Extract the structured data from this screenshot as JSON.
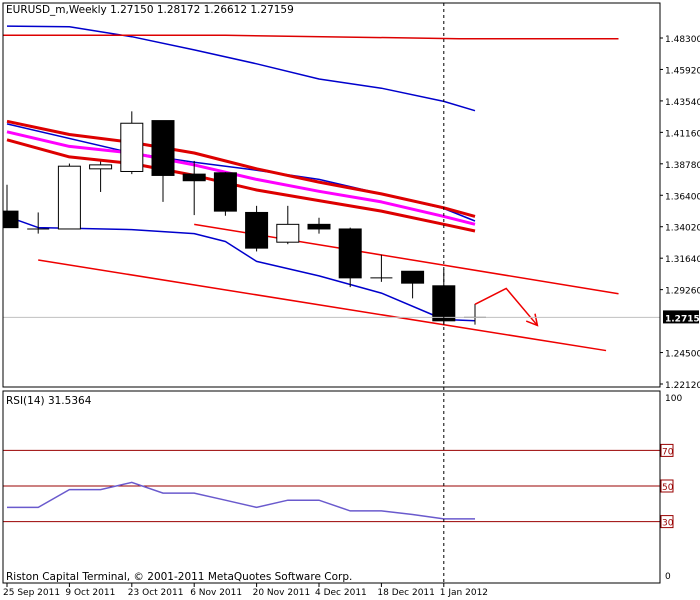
{
  "chart_data": [
    {
      "type": "candlestick",
      "title": "EURUSD_m,Weekly  1.27150 1.28172 1.26612 1.27159",
      "copyright": "Riston Capital Terminal, © 2001-2011 MetaQuotes Software Corp.",
      "ylim": [
        1.2212,
        1.4951
      ],
      "y_ticks": [
        "1.48300",
        "1.45920",
        "1.43540",
        "1.41160",
        "1.38780",
        "1.36400",
        "1.34020",
        "1.31640",
        "1.29260",
        "1.27159",
        "1.24500",
        "1.22120"
      ],
      "current_price": "1.27159",
      "x_ticks": [
        "25 Sep 2011",
        "9 Oct 2011",
        "23 Oct 2011",
        "6 Nov 2011",
        "20 Nov 2011",
        "4 Dec 2011",
        "18 Dec 2011",
        "1 Jan 2012"
      ],
      "x_tick_index": [
        0,
        2,
        4,
        6,
        8,
        10,
        12,
        14
      ],
      "cursor_index": 14,
      "candles": [
        {
          "open": 1.352,
          "high": 1.372,
          "low": 1.3395,
          "close": 1.3395
        },
        {
          "open": 1.3385,
          "high": 1.351,
          "low": 1.335,
          "close": 1.3385
        },
        {
          "open": 1.3385,
          "high": 1.388,
          "low": 1.3385,
          "close": 1.386
        },
        {
          "open": 1.384,
          "high": 1.3895,
          "low": 1.3665,
          "close": 1.387
        },
        {
          "open": 1.382,
          "high": 1.4275,
          "low": 1.38,
          "close": 1.4185
        },
        {
          "open": 1.4205,
          "high": 1.4205,
          "low": 1.359,
          "close": 1.379
        },
        {
          "open": 1.38,
          "high": 1.39,
          "low": 1.349,
          "close": 1.375
        },
        {
          "open": 1.381,
          "high": 1.3815,
          "low": 1.3485,
          "close": 1.352
        },
        {
          "open": 1.351,
          "high": 1.356,
          "low": 1.3215,
          "close": 1.324
        },
        {
          "open": 1.3285,
          "high": 1.356,
          "low": 1.327,
          "close": 1.342
        },
        {
          "open": 1.342,
          "high": 1.347,
          "low": 1.335,
          "close": 1.3385
        },
        {
          "open": 1.3385,
          "high": 1.3395,
          "low": 1.2945,
          "close": 1.3015
        },
        {
          "open": 1.3015,
          "high": 1.319,
          "low": 1.2985,
          "close": 1.3015
        },
        {
          "open": 1.3065,
          "high": 1.3065,
          "low": 1.286,
          "close": 1.2975
        },
        {
          "open": 1.2955,
          "high": 1.308,
          "low": 1.266,
          "close": 1.269
        },
        {
          "open": 1.2715,
          "high": 1.28172,
          "low": 1.26612,
          "close": 1.27159
        }
      ],
      "bands": [
        {
          "color": "#0000cc",
          "width": 1.5,
          "x": [
            0,
            2,
            4,
            6,
            8,
            10,
            12,
            14,
            15
          ],
          "y": [
            1.492,
            1.4915,
            1.484,
            1.474,
            1.4635,
            1.452,
            1.445,
            1.435,
            1.428
          ]
        },
        {
          "color": "#0000cc",
          "width": 1.5,
          "x": [
            0,
            4,
            6,
            8,
            10,
            12,
            14,
            15
          ],
          "y": [
            1.418,
            1.396,
            1.389,
            1.383,
            1.376,
            1.365,
            1.354,
            1.3445
          ]
        },
        {
          "color": "#0000cc",
          "width": 1.5,
          "x": [
            0,
            1,
            2,
            4,
            6,
            7,
            8,
            10,
            12,
            14,
            15
          ],
          "y": [
            1.348,
            1.3395,
            1.339,
            1.338,
            1.335,
            1.329,
            1.314,
            1.303,
            1.29,
            1.27,
            1.269
          ]
        },
        {
          "color": "#dd0000",
          "width": 3,
          "x": [
            0,
            2,
            4,
            6,
            8,
            10,
            12,
            14,
            15
          ],
          "y": [
            1.42,
            1.41,
            1.404,
            1.396,
            1.384,
            1.374,
            1.365,
            1.3545,
            1.348
          ]
        },
        {
          "color": "#ff00ff",
          "width": 3,
          "x": [
            0,
            2,
            4,
            6,
            8,
            10,
            12,
            14,
            15
          ],
          "y": [
            1.412,
            1.401,
            1.396,
            1.387,
            1.376,
            1.367,
            1.359,
            1.348,
            1.342
          ]
        },
        {
          "color": "#dd0000",
          "width": 3,
          "x": [
            0,
            2,
            4,
            6,
            8,
            10,
            12,
            14,
            15
          ],
          "y": [
            1.406,
            1.393,
            1.388,
            1.379,
            1.368,
            1.36,
            1.352,
            1.342,
            1.337
          ]
        },
        {
          "color": "#dd0000",
          "width": 1.5,
          "x": [
            -0.3,
            7,
            14.5,
            19.6
          ],
          "y": [
            1.485,
            1.485,
            1.4825,
            1.4825
          ]
        }
      ],
      "trendlines": [
        {
          "color": "#ee0000",
          "width": 1.5,
          "x": [
            1,
            19.2
          ],
          "y": [
            1.315,
            1.2465
          ]
        },
        {
          "color": "#ee0000",
          "width": 1.5,
          "x": [
            6,
            19.6
          ],
          "y": [
            1.342,
            1.2895
          ]
        }
      ],
      "annotation_arrow": {
        "color": "#ee0000",
        "points": [
          [
            15,
            1.2815
          ],
          [
            16,
            1.2935
          ],
          [
            17,
            1.2655
          ]
        ]
      }
    },
    {
      "type": "line",
      "title": "RSI(14) 31.5364",
      "ylim": [
        0,
        100
      ],
      "y_ticks": [
        "100",
        "0"
      ],
      "levels": [
        {
          "value": 70,
          "label": "70"
        },
        {
          "value": 50,
          "label": "50"
        },
        {
          "value": 30,
          "label": "30"
        }
      ],
      "series": [
        {
          "color": "#6a5acd",
          "x": [
            0,
            1,
            2,
            3,
            4,
            5,
            6,
            7,
            8,
            9,
            10,
            11,
            12,
            13,
            14,
            15
          ],
          "values": [
            38,
            38,
            48,
            48,
            52,
            46,
            46,
            42,
            38,
            42,
            42,
            36,
            36,
            34,
            31.5,
            31.5364
          ]
        }
      ]
    }
  ],
  "colors": {
    "background": "#ffffff",
    "frame": "#000000",
    "grid_levels": "#990000",
    "cursor": "#000000"
  }
}
